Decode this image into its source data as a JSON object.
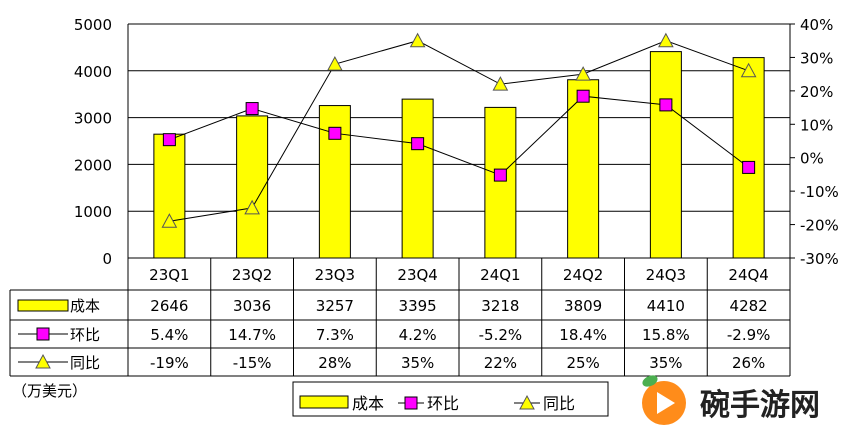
{
  "chart_data": {
    "type": "bar+line",
    "categories": [
      "23Q1",
      "23Q2",
      "23Q3",
      "23Q4",
      "24Q1",
      "24Q2",
      "24Q3",
      "24Q4"
    ],
    "series": [
      {
        "name": "成本",
        "type": "bar",
        "axis": "left",
        "color": "#FFFF00",
        "values": [
          2646,
          3036,
          3257,
          3395,
          3218,
          3809,
          4410,
          4282
        ],
        "labels": [
          "2646",
          "3036",
          "3257",
          "3395",
          "3218",
          "3809",
          "4410",
          "4282"
        ]
      },
      {
        "name": "环比",
        "type": "line",
        "axis": "right",
        "marker": "square",
        "color": "#FF00FF",
        "values": [
          5.4,
          14.7,
          7.3,
          4.2,
          -5.2,
          18.4,
          15.8,
          -2.9
        ],
        "labels": [
          "5.4%",
          "14.7%",
          "7.3%",
          "4.2%",
          "-5.2%",
          "18.4%",
          "15.8%",
          "-2.9%"
        ]
      },
      {
        "name": "同比",
        "type": "line",
        "axis": "right",
        "marker": "triangle",
        "color": "#FFFF00",
        "values": [
          -19,
          -15,
          28,
          35,
          22,
          25,
          35,
          26
        ],
        "labels": [
          "-19%",
          "-15%",
          "28%",
          "35%",
          "22%",
          "25%",
          "35%",
          "26%"
        ]
      }
    ],
    "y_left": {
      "min": 0,
      "max": 5000,
      "ticks": [
        "0",
        "1000",
        "2000",
        "3000",
        "4000",
        "5000"
      ]
    },
    "y_right": {
      "min": -30,
      "max": 40,
      "ticks": [
        "-30%",
        "-20%",
        "-10%",
        "0%",
        "10%",
        "20%",
        "30%",
        "40%"
      ]
    },
    "unit_label": "（万美元）",
    "grid": "horizontal",
    "legend_position": "bottom"
  },
  "watermark": {
    "text": "碗手游网",
    "icon": "play-logo-icon"
  }
}
